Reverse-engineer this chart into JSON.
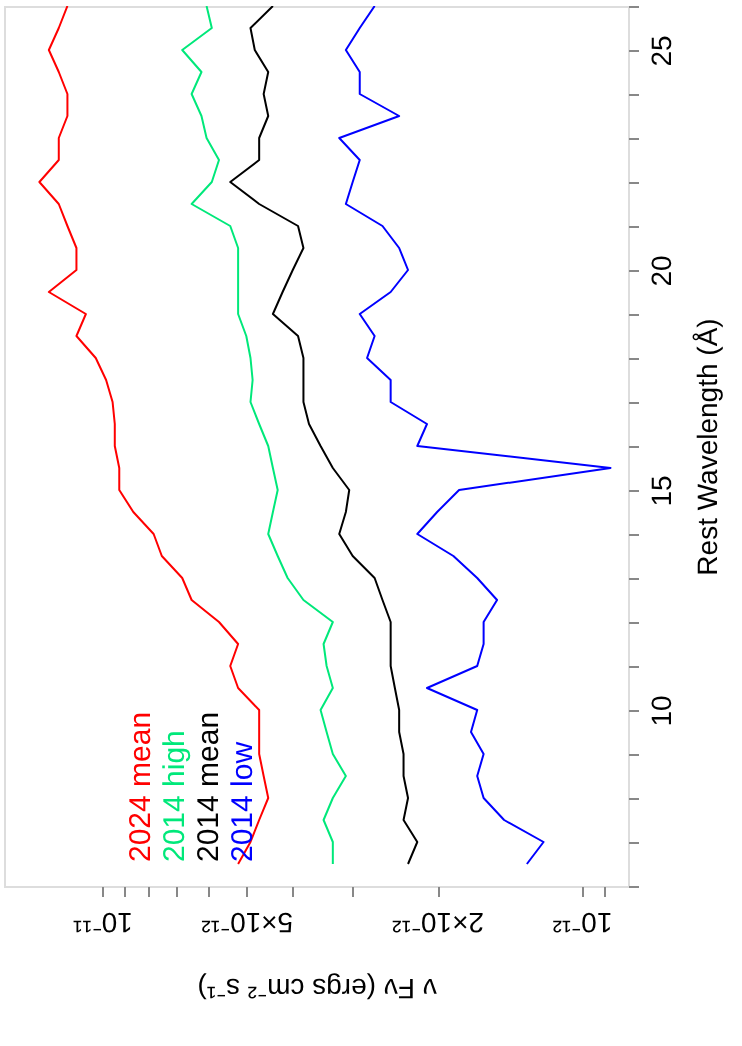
{
  "chart_data": {
    "type": "line",
    "xlabel": "ν Fν (ergs cm⁻² s⁻¹)",
    "ylabel": "Rest Wavelength (Å)",
    "series": [
      {
        "name": "2024 mean",
        "color": "#ff0000",
        "x": [
          5.2e-12,
          4.9e-12,
          4.7e-12,
          4.5e-12,
          4.6e-12,
          4.7e-12,
          4.7e-12,
          4.7e-12,
          5.2e-12,
          5.4e-12,
          5.2e-12,
          5.7e-12,
          6.5e-12,
          6.8e-12,
          7.5e-12,
          7.8e-12,
          8.6e-12,
          9.2e-12,
          9.2e-12,
          9.4e-12,
          9.4e-12,
          9.5e-12,
          9.8e-12,
          1.03e-11,
          1.13e-11,
          1.08e-11,
          1.29e-11,
          1.13e-11,
          1.13e-11,
          1.18e-11,
          1.23e-11,
          1.35e-11,
          1.23e-11,
          1.23e-11,
          1.18e-11,
          1.18e-11,
          1.23e-11,
          1.29e-11,
          1.23e-11,
          1.18e-11
        ],
        "values": [
          6.5,
          7,
          7.5,
          8,
          8.5,
          9,
          9.5,
          10,
          10.5,
          11,
          11.5,
          12,
          12.5,
          13,
          13.5,
          14,
          14.5,
          15,
          15.5,
          16,
          16.5,
          17,
          17.5,
          18,
          18.5,
          19,
          19.5,
          20,
          20.5,
          21,
          21.5,
          22,
          22.5,
          23,
          23.5,
          24,
          24.5,
          25,
          25.5,
          26
        ]
      },
      {
        "name": "2014 high",
        "color": "#00e87a",
        "x": [
          3.3e-12,
          3.3e-12,
          3.45e-12,
          3.3e-12,
          3.1e-12,
          3.3e-12,
          3.4e-12,
          3.5e-12,
          3.3e-12,
          3.4e-12,
          3.45e-12,
          3.3e-12,
          3.8e-12,
          4.1e-12,
          4.3e-12,
          4.5e-12,
          4.4e-12,
          4.3e-12,
          4.4e-12,
          4.5e-12,
          4.7e-12,
          4.9e-12,
          4.85e-12,
          4.9e-12,
          5e-12,
          5.2e-12,
          5.2e-12,
          5.2e-12,
          5.2e-12,
          5.4e-12,
          6.5e-12,
          5.9e-12,
          5.7e-12,
          6.05e-12,
          6.2e-12,
          6.5e-12,
          6.2e-12,
          6.8e-12,
          5.9e-12,
          6.05e-12
        ],
        "values": [
          6.5,
          7,
          7.5,
          8,
          8.5,
          9,
          9.5,
          10,
          10.5,
          11,
          11.5,
          12,
          12.5,
          13,
          13.5,
          14,
          14.5,
          15,
          15.5,
          16,
          16.5,
          17,
          17.5,
          18,
          18.5,
          19,
          19.5,
          20,
          20.5,
          21,
          21.5,
          22,
          22.5,
          23,
          23.5,
          24,
          24.5,
          25,
          25.5,
          26
        ]
      },
      {
        "name": "2014 mean",
        "color": "#000000",
        "x": [
          2.3e-12,
          2.2e-12,
          2.35e-12,
          2.3e-12,
          2.35e-12,
          2.35e-12,
          2.4e-12,
          2.4e-12,
          2.45e-12,
          2.5e-12,
          2.5e-12,
          2.5e-12,
          2.6e-12,
          2.7e-12,
          3e-12,
          3.2e-12,
          3.1e-12,
          3.05e-12,
          3.3e-12,
          3.5e-12,
          3.7e-12,
          3.8e-12,
          3.8e-12,
          3.8e-12,
          3.9e-12,
          4.4e-12,
          4.2e-12,
          4e-12,
          3.8e-12,
          3.9e-12,
          4.7e-12,
          5.4e-12,
          4.7e-12,
          4.7e-12,
          4.5e-12,
          4.6e-12,
          4.5e-12,
          4.8e-12,
          4.9e-12,
          4.4e-12
        ],
        "values": [
          6.5,
          7,
          7.5,
          8,
          8.5,
          9,
          9.5,
          10,
          10.5,
          11,
          11.5,
          12,
          12.5,
          13,
          13.5,
          14,
          14.5,
          15,
          15.5,
          16,
          16.5,
          17,
          17.5,
          18,
          18.5,
          19,
          19.5,
          20,
          20.5,
          21,
          21.5,
          22,
          22.5,
          23,
          23.5,
          24,
          24.5,
          25,
          25.5,
          26
        ]
      },
      {
        "name": "2014 low",
        "color": "#0000ff",
        "x": [
          1.3e-12,
          1.2e-12,
          1.45e-12,
          1.6e-12,
          1.65e-12,
          1.6e-12,
          1.7e-12,
          1.65e-12,
          2.1e-12,
          1.65e-12,
          1.6e-12,
          1.6e-12,
          1.5e-12,
          1.65e-12,
          1.85e-12,
          2.2e-12,
          2e-12,
          1.8e-12,
          8.7e-13,
          2.2e-12,
          2.1e-12,
          2.5e-12,
          2.5e-12,
          2.8e-12,
          2.7e-12,
          2.9e-12,
          2.5e-12,
          2.3e-12,
          2.4e-12,
          2.6e-12,
          3.1e-12,
          3e-12,
          2.9e-12,
          3.2e-12,
          2.4e-12,
          2.9e-12,
          2.9e-12,
          3.1e-12,
          2.9e-12,
          2.7e-12
        ],
        "values": [
          6.5,
          7,
          7.5,
          8,
          8.5,
          9,
          9.5,
          10,
          10.5,
          11,
          11.5,
          12,
          12.5,
          13,
          13.5,
          14,
          14.5,
          15,
          15.5,
          16,
          16.5,
          17,
          17.5,
          18,
          18.5,
          19,
          19.5,
          20,
          20.5,
          21,
          21.5,
          22,
          22.5,
          23,
          23.5,
          24,
          24.5,
          25,
          25.5,
          26
        ]
      }
    ],
    "ylim": [
      6,
      26
    ],
    "yticks": [
      {
        "value": 6,
        "label": null
      },
      {
        "value": 7,
        "label": null
      },
      {
        "value": 8,
        "label": null
      },
      {
        "value": 9,
        "label": null
      },
      10,
      {
        "value": 11,
        "label": null
      },
      {
        "value": 12,
        "label": null
      },
      {
        "value": 13,
        "label": null
      },
      {
        "value": 14,
        "label": null
      },
      15,
      {
        "value": 16,
        "label": null
      },
      {
        "value": 17,
        "label": null
      },
      {
        "value": 18,
        "label": null
      },
      {
        "value": 19,
        "label": null
      },
      20,
      {
        "value": 21,
        "label": null
      },
      {
        "value": 22,
        "label": null
      },
      {
        "value": 23,
        "label": null
      },
      {
        "value": 24,
        "label": null
      },
      25,
      {
        "value": 26,
        "label": null
      }
    ],
    "xlim": [
      1.6e-11,
      8e-13
    ],
    "xticks": [
      {
        "value": 1e-11,
        "label": "10⁻¹¹"
      },
      {
        "value": 9e-12,
        "label": null
      },
      {
        "value": 8e-12,
        "label": null
      },
      {
        "value": 7e-12,
        "label": null
      },
      {
        "value": 6e-12,
        "label": null
      },
      {
        "value": 5e-12,
        "label": "5×10⁻¹²"
      },
      {
        "value": 4e-12,
        "label": null
      },
      {
        "value": 3e-12,
        "label": null
      },
      {
        "value": 2e-12,
        "label": "2×10⁻¹²"
      },
      {
        "value": 1e-12,
        "label": "10⁻¹²"
      },
      {
        "value": 9e-13,
        "label": null
      }
    ],
    "log": "x",
    "grid": false,
    "legend": "bottom left",
    "line_style": "solid"
  }
}
